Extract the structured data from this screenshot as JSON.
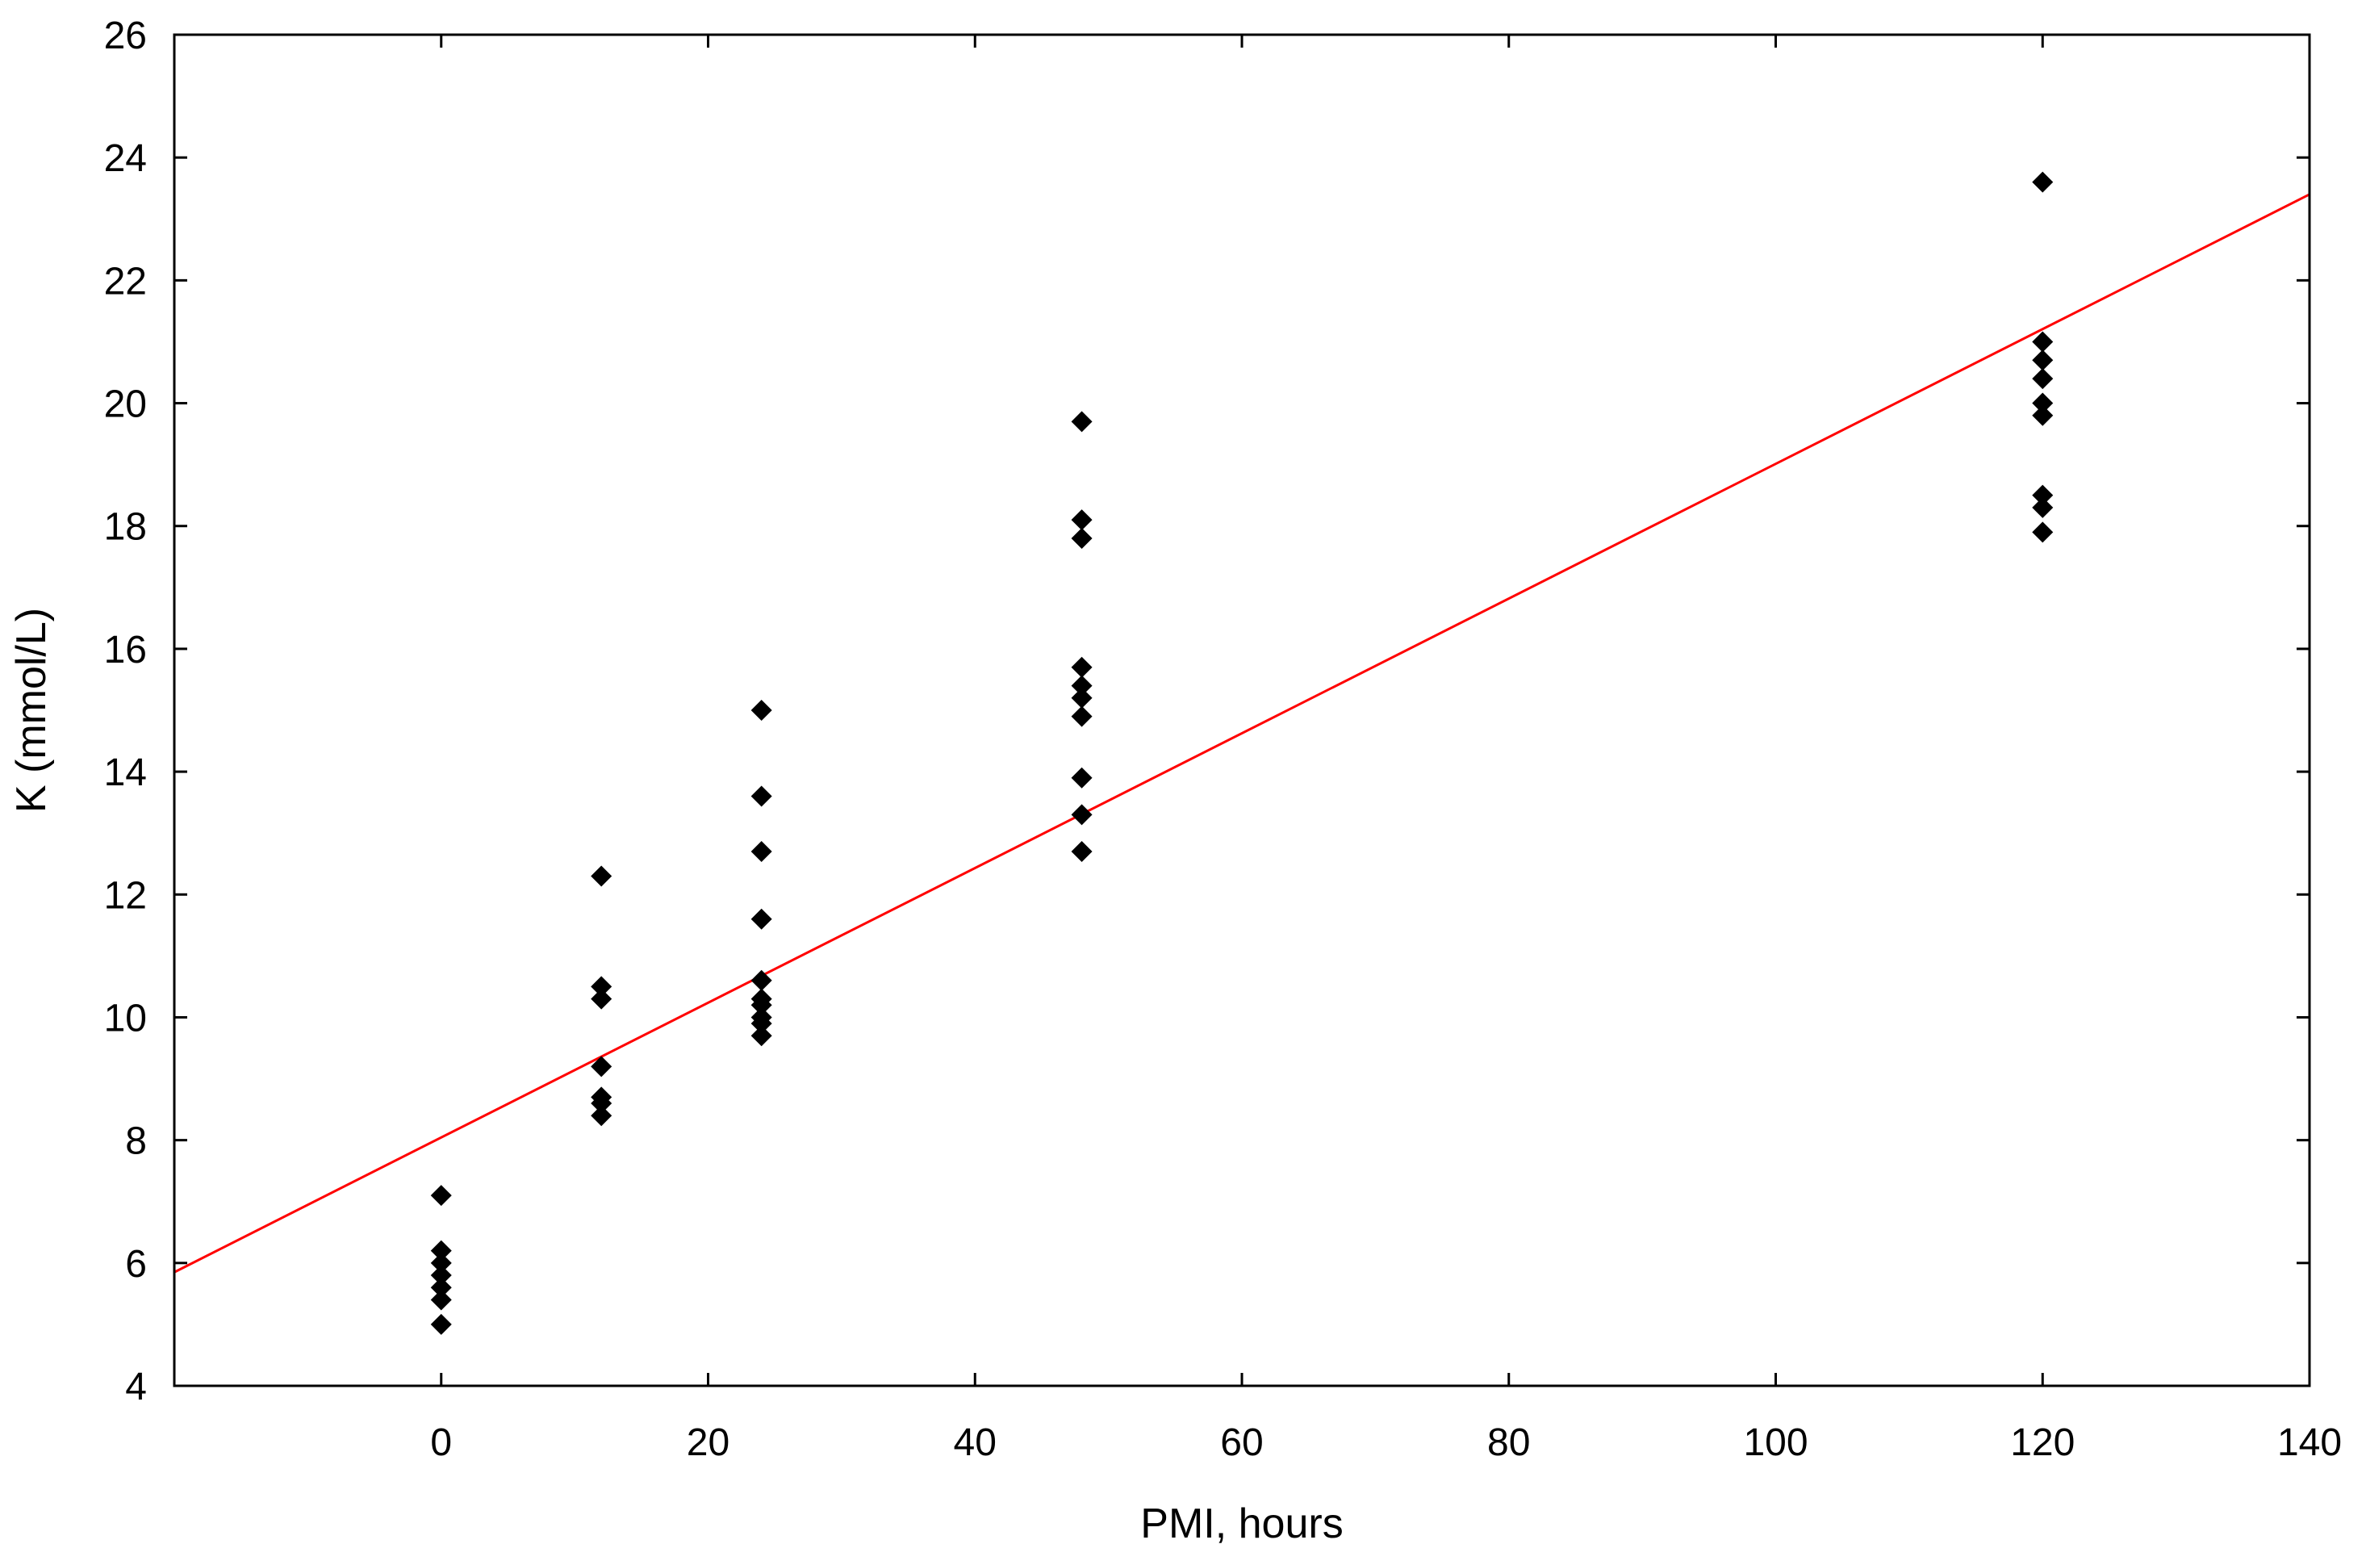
{
  "chart_data": {
    "type": "scatter",
    "title": "",
    "xlabel": "PMI, hours",
    "ylabel": "K (mmol/L)",
    "xlim": [
      -20,
      140
    ],
    "ylim": [
      4,
      26
    ],
    "xticks": [
      0,
      20,
      40,
      60,
      80,
      100,
      120,
      140
    ],
    "yticks": [
      4,
      6,
      8,
      10,
      12,
      14,
      16,
      18,
      20,
      22,
      24,
      26
    ],
    "grid": false,
    "legend": "none",
    "marker": "diamond",
    "marker_color": "#000000",
    "series": [
      {
        "points": [
          [
            0,
            7.1
          ],
          [
            0,
            6.2
          ],
          [
            0,
            6.0
          ],
          [
            0,
            5.8
          ],
          [
            0,
            5.6
          ],
          [
            0,
            5.4
          ],
          [
            0,
            5.0
          ],
          [
            12,
            12.3
          ],
          [
            12,
            10.5
          ],
          [
            12,
            10.3
          ],
          [
            12,
            9.2
          ],
          [
            12,
            8.7
          ],
          [
            12,
            8.6
          ],
          [
            12,
            8.4
          ],
          [
            24,
            15.0
          ],
          [
            24,
            13.6
          ],
          [
            24,
            12.7
          ],
          [
            24,
            11.6
          ],
          [
            24,
            10.6
          ],
          [
            24,
            10.3
          ],
          [
            24,
            10.2
          ],
          [
            24,
            10.0
          ],
          [
            24,
            9.9
          ],
          [
            24,
            9.7
          ],
          [
            48,
            19.7
          ],
          [
            48,
            18.1
          ],
          [
            48,
            17.8
          ],
          [
            48,
            15.7
          ],
          [
            48,
            15.4
          ],
          [
            48,
            15.2
          ],
          [
            48,
            14.9
          ],
          [
            48,
            13.9
          ],
          [
            48,
            13.3
          ],
          [
            48,
            12.7
          ],
          [
            120,
            23.6
          ],
          [
            120,
            21.0
          ],
          [
            120,
            20.7
          ],
          [
            120,
            20.4
          ],
          [
            120,
            20.0
          ],
          [
            120,
            19.8
          ],
          [
            120,
            18.5
          ],
          [
            120,
            18.3
          ],
          [
            120,
            17.9
          ]
        ]
      }
    ],
    "fit_line": {
      "color": "#ff0000",
      "points": [
        [
          -20,
          5.85
        ],
        [
          140,
          23.4
        ]
      ]
    }
  }
}
